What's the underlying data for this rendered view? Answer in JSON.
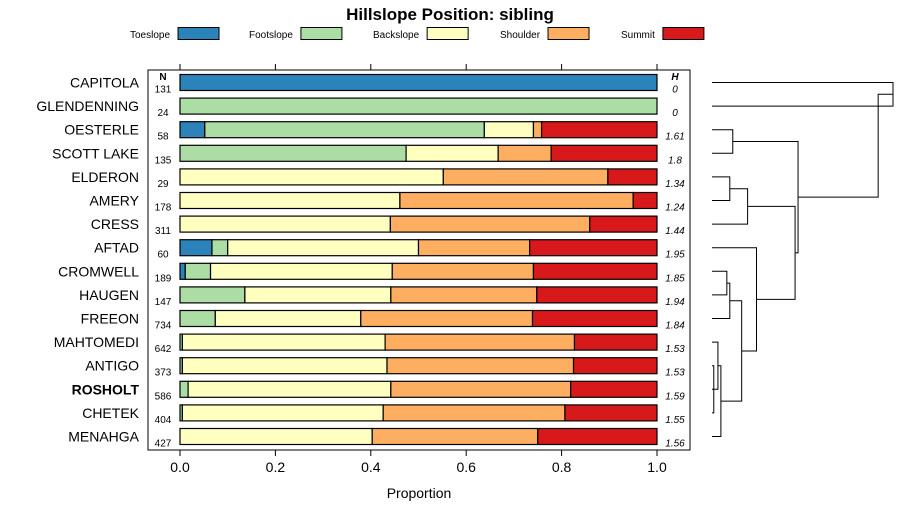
{
  "chart_data": {
    "type": "bar",
    "orientation": "horizontal",
    "stacked": true,
    "title": "Hillslope Position: sibling",
    "xlabel": "Proportion",
    "ylabel": "",
    "xlim": [
      0,
      1
    ],
    "x_ticks": [
      "0.0",
      "0.2",
      "0.4",
      "0.6",
      "0.8",
      "1.0"
    ],
    "x_tick_values": [
      0,
      0.2,
      0.4,
      0.6,
      0.8,
      1.0
    ],
    "n_header": "N",
    "h_header": "H",
    "legend_position": "top",
    "legend": [
      {
        "name": "Toeslope",
        "color": "#2b83ba"
      },
      {
        "name": "Footslope",
        "color": "#abdda4"
      },
      {
        "name": "Backslope",
        "color": "#ffffbf"
      },
      {
        "name": "Shoulder",
        "color": "#fdae61"
      },
      {
        "name": "Summit",
        "color": "#d7191c"
      }
    ],
    "rows": [
      {
        "label": "CAPITOLA",
        "n": "131",
        "h": "0",
        "bold": false,
        "values": [
          1.0,
          0,
          0,
          0,
          0
        ]
      },
      {
        "label": "GLENDENNING",
        "n": "24",
        "h": "0",
        "bold": false,
        "values": [
          0,
          1.0,
          0,
          0,
          0
        ]
      },
      {
        "label": "OESTERLE",
        "n": "58",
        "h": "1.61",
        "bold": false,
        "values": [
          0.052,
          0.586,
          0.103,
          0.017,
          0.242
        ]
      },
      {
        "label": "SCOTT LAKE",
        "n": "135",
        "h": "1.8",
        "bold": false,
        "values": [
          0,
          0.474,
          0.193,
          0.111,
          0.222
        ]
      },
      {
        "label": "ELDERON",
        "n": "29",
        "h": "1.34",
        "bold": false,
        "values": [
          0,
          0,
          0.552,
          0.345,
          0.103
        ]
      },
      {
        "label": "AMERY",
        "n": "178",
        "h": "1.24",
        "bold": false,
        "values": [
          0,
          0,
          0.461,
          0.489,
          0.05
        ]
      },
      {
        "label": "CRESS",
        "n": "311",
        "h": "1.44",
        "bold": false,
        "values": [
          0,
          0,
          0.441,
          0.418,
          0.141
        ]
      },
      {
        "label": "AFTAD",
        "n": "60",
        "h": "1.95",
        "bold": false,
        "values": [
          0.067,
          0.033,
          0.4,
          0.233,
          0.267
        ]
      },
      {
        "label": "CROMWELL",
        "n": "189",
        "h": "1.85",
        "bold": false,
        "values": [
          0.011,
          0.053,
          0.381,
          0.296,
          0.259
        ]
      },
      {
        "label": "HAUGEN",
        "n": "147",
        "h": "1.94",
        "bold": false,
        "values": [
          0,
          0.136,
          0.306,
          0.306,
          0.252
        ]
      },
      {
        "label": "FREEON",
        "n": "734",
        "h": "1.84",
        "bold": false,
        "values": [
          0,
          0.074,
          0.305,
          0.36,
          0.261
        ]
      },
      {
        "label": "MAHTOMEDI",
        "n": "642",
        "h": "1.53",
        "bold": false,
        "values": [
          0,
          0.005,
          0.425,
          0.397,
          0.173
        ]
      },
      {
        "label": "ANTIGO",
        "n": "373",
        "h": "1.53",
        "bold": false,
        "values": [
          0,
          0.005,
          0.429,
          0.391,
          0.175
        ]
      },
      {
        "label": "ROSHOLT",
        "n": "586",
        "h": "1.59",
        "bold": true,
        "values": [
          0,
          0.017,
          0.425,
          0.377,
          0.181
        ]
      },
      {
        "label": "CHETEK",
        "n": "404",
        "h": "1.55",
        "bold": false,
        "values": [
          0,
          0.005,
          0.421,
          0.381,
          0.193
        ]
      },
      {
        "label": "MENAHGA",
        "n": "427",
        "h": "1.56",
        "bold": false,
        "values": [
          0,
          0,
          0.403,
          0.347,
          0.25
        ]
      }
    ],
    "dendrogram": {
      "merges": [
        [
          0,
          1
        ],
        [
          4,
          5
        ],
        [
          17,
          6
        ],
        [
          12,
          14
        ],
        [
          19,
          13
        ],
        [
          11,
          20
        ],
        [
          21,
          15
        ],
        [
          8,
          9
        ],
        [
          23,
          10
        ],
        [
          24,
          22
        ],
        [
          7,
          25
        ],
        [
          18,
          26
        ],
        [
          2,
          3
        ],
        [
          28,
          27
        ],
        [
          16,
          29
        ]
      ],
      "heights": [
        3.05,
        0.3,
        0.6,
        0.03,
        0.06,
        0.1,
        0.15,
        0.25,
        0.3,
        0.5,
        0.75,
        1.4,
        0.35,
        1.45,
        2.8
      ]
    }
  }
}
